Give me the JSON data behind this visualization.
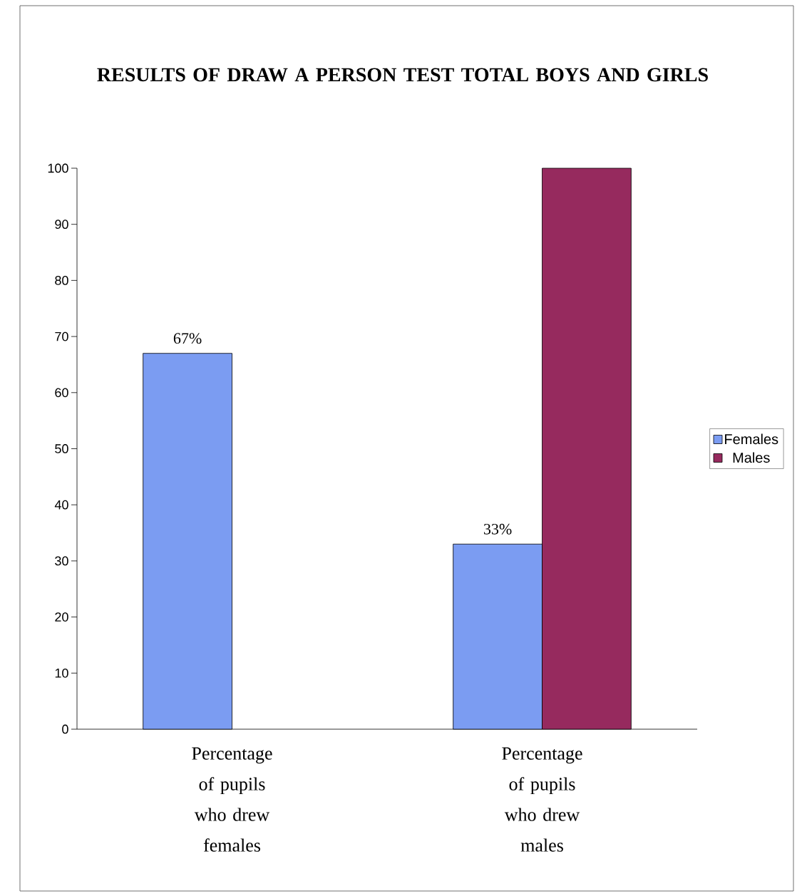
{
  "chart_data": {
    "type": "bar",
    "title": "RESULTS OF DRAW A PERSON TEST TOTAL BOYS AND GIRLS",
    "categories": [
      "Percentage of pupils who drew females",
      "Percentage of pupils who drew males"
    ],
    "series": [
      {
        "name": "Females",
        "color": "#7b9cf2",
        "values": [
          67,
          33
        ],
        "value_labels": [
          "67%",
          "33%"
        ]
      },
      {
        "name": "Males",
        "color": "#962a5e",
        "values": [
          null,
          100
        ]
      }
    ],
    "ylim": [
      0,
      100
    ],
    "yticks": [
      0,
      10,
      20,
      30,
      40,
      50,
      60,
      70,
      80,
      90,
      100
    ],
    "legend": "right"
  }
}
